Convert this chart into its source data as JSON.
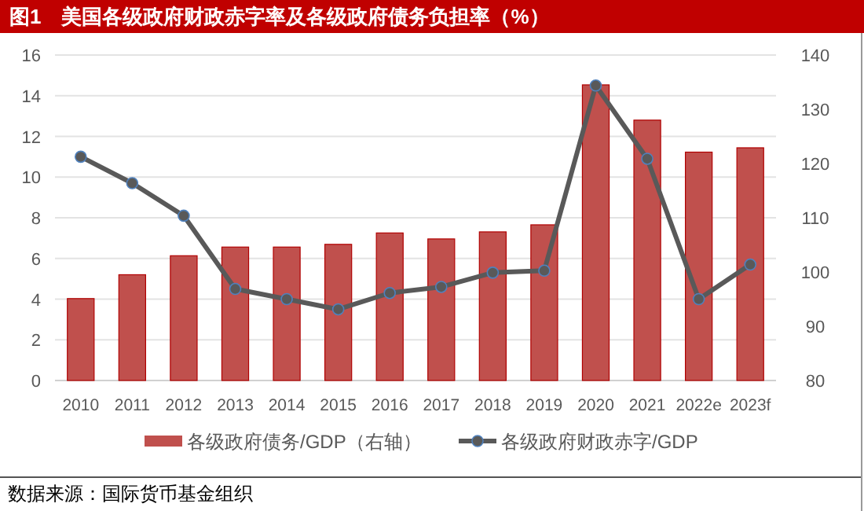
{
  "chart_data": {
    "type": "bar",
    "title": "图1　美国各级政府财政赤字率及各级政府债务负担率（%）",
    "categories": [
      "2010",
      "2011",
      "2012",
      "2013",
      "2014",
      "2015",
      "2016",
      "2017",
      "2018",
      "2019",
      "2020",
      "2021",
      "2022e",
      "2023f"
    ],
    "series": [
      {
        "name": "各级政府债务/GDP（右轴）",
        "axis": "y2",
        "color": "#c0504d",
        "values": [
          95.1,
          99.5,
          103.0,
          104.6,
          104.6,
          105.1,
          107.2,
          106.1,
          107.4,
          108.7,
          134.5,
          128.0,
          122.1,
          122.9
        ]
      },
      {
        "name": "各级政府财政赤字/GDP",
        "type": "line",
        "color": "#595959",
        "marker": "circle",
        "values": [
          11.0,
          9.7,
          8.1,
          4.5,
          4.0,
          3.5,
          4.3,
          4.6,
          5.3,
          5.4,
          14.5,
          10.9,
          4.0,
          5.7
        ]
      }
    ],
    "ylim": [
      0,
      16
    ],
    "yticks": [
      0,
      2,
      4,
      6,
      8,
      10,
      12,
      14,
      16
    ],
    "y2lim": [
      80,
      140
    ],
    "y2ticks": [
      80,
      90,
      100,
      110,
      120,
      130,
      140
    ],
    "grid": "y",
    "legend": "bottom",
    "annotations": [
      "数据来源：国际货币基金组织"
    ]
  }
}
